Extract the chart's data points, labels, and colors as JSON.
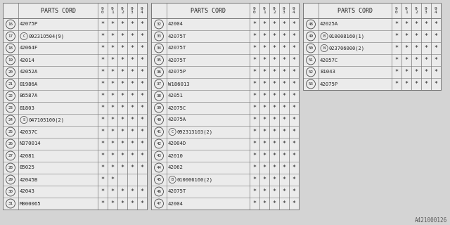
{
  "bg_color": "#d4d4d4",
  "table_bg": "#e8e8e8",
  "border_color": "#888888",
  "text_color": "#222222",
  "tables": [
    {
      "title": "PARTS CORD",
      "rows": [
        {
          "num": "16",
          "part": "42075P",
          "prefix": "",
          "marks": [
            1,
            1,
            1,
            1,
            1
          ]
        },
        {
          "num": "17",
          "part": "09231O504(9)",
          "prefix": "C",
          "marks": [
            1,
            1,
            1,
            1,
            1
          ]
        },
        {
          "num": "18",
          "part": "42064F",
          "prefix": "",
          "marks": [
            1,
            1,
            1,
            1,
            1
          ]
        },
        {
          "num": "19",
          "part": "42014",
          "prefix": "",
          "marks": [
            1,
            1,
            1,
            1,
            1
          ]
        },
        {
          "num": "20",
          "part": "42052A",
          "prefix": "",
          "marks": [
            1,
            1,
            1,
            1,
            1
          ]
        },
        {
          "num": "21",
          "part": "81986A",
          "prefix": "",
          "marks": [
            1,
            1,
            1,
            1,
            1
          ]
        },
        {
          "num": "22",
          "part": "86587A",
          "prefix": "",
          "marks": [
            1,
            1,
            1,
            1,
            1
          ]
        },
        {
          "num": "23",
          "part": "81803",
          "prefix": "",
          "marks": [
            1,
            1,
            1,
            1,
            1
          ]
        },
        {
          "num": "24",
          "part": "047105100(2)",
          "prefix": "S",
          "marks": [
            1,
            1,
            1,
            1,
            1
          ]
        },
        {
          "num": "25",
          "part": "42037C",
          "prefix": "",
          "marks": [
            1,
            1,
            1,
            1,
            1
          ]
        },
        {
          "num": "26",
          "part": "N370014",
          "prefix": "",
          "marks": [
            1,
            1,
            1,
            1,
            1
          ]
        },
        {
          "num": "27",
          "part": "42081",
          "prefix": "",
          "marks": [
            1,
            1,
            1,
            1,
            1
          ]
        },
        {
          "num": "28",
          "part": "85025",
          "prefix": "",
          "marks": [
            1,
            1,
            1,
            1,
            1
          ]
        },
        {
          "num": "29",
          "part": "42045B",
          "prefix": "",
          "marks": [
            1,
            1,
            0,
            0,
            0
          ]
        },
        {
          "num": "30",
          "part": "42043",
          "prefix": "",
          "marks": [
            1,
            1,
            1,
            1,
            1
          ]
        },
        {
          "num": "31",
          "part": "M000065",
          "prefix": "",
          "marks": [
            1,
            1,
            1,
            1,
            1
          ]
        }
      ]
    },
    {
      "title": "PARTS CORD",
      "rows": [
        {
          "num": "32",
          "part": "42004",
          "prefix": "",
          "marks": [
            1,
            1,
            1,
            1,
            1
          ]
        },
        {
          "num": "33",
          "part": "42075T",
          "prefix": "",
          "marks": [
            1,
            1,
            1,
            1,
            1
          ]
        },
        {
          "num": "34",
          "part": "42075T",
          "prefix": "",
          "marks": [
            1,
            1,
            1,
            1,
            1
          ]
        },
        {
          "num": "35",
          "part": "42075T",
          "prefix": "",
          "marks": [
            1,
            1,
            1,
            1,
            1
          ]
        },
        {
          "num": "36",
          "part": "42075P",
          "prefix": "",
          "marks": [
            1,
            1,
            1,
            1,
            1
          ]
        },
        {
          "num": "37",
          "part": "W186013",
          "prefix": "",
          "marks": [
            1,
            1,
            1,
            1,
            1
          ]
        },
        {
          "num": "38",
          "part": "42051",
          "prefix": "",
          "marks": [
            1,
            1,
            1,
            1,
            1
          ]
        },
        {
          "num": "39",
          "part": "42075C",
          "prefix": "",
          "marks": [
            1,
            1,
            1,
            1,
            1
          ]
        },
        {
          "num": "40",
          "part": "42075A",
          "prefix": "",
          "marks": [
            1,
            1,
            1,
            1,
            1
          ]
        },
        {
          "num": "41",
          "part": "092313103(2)",
          "prefix": "C",
          "marks": [
            1,
            1,
            1,
            1,
            1
          ]
        },
        {
          "num": "42",
          "part": "42004D",
          "prefix": "",
          "marks": [
            1,
            1,
            1,
            1,
            1
          ]
        },
        {
          "num": "43",
          "part": "42010",
          "prefix": "",
          "marks": [
            1,
            1,
            1,
            1,
            1
          ]
        },
        {
          "num": "44",
          "part": "42062",
          "prefix": "",
          "marks": [
            1,
            1,
            1,
            1,
            1
          ]
        },
        {
          "num": "45",
          "part": "010006160(2)",
          "prefix": "B",
          "marks": [
            1,
            1,
            1,
            1,
            1
          ]
        },
        {
          "num": "46",
          "part": "42075T",
          "prefix": "",
          "marks": [
            1,
            1,
            1,
            1,
            1
          ]
        },
        {
          "num": "47",
          "part": "42004",
          "prefix": "",
          "marks": [
            1,
            1,
            1,
            1,
            1
          ]
        }
      ]
    },
    {
      "title": "PARTS CORD",
      "rows": [
        {
          "num": "48",
          "part": "42025A",
          "prefix": "",
          "marks": [
            1,
            1,
            1,
            1,
            1
          ]
        },
        {
          "num": "49",
          "part": "010008160(1)",
          "prefix": "B",
          "marks": [
            1,
            1,
            1,
            1,
            1
          ]
        },
        {
          "num": "50",
          "part": "023706000(2)",
          "prefix": "N",
          "marks": [
            1,
            1,
            1,
            1,
            1
          ]
        },
        {
          "num": "51",
          "part": "42057C",
          "prefix": "",
          "marks": [
            1,
            1,
            1,
            1,
            1
          ]
        },
        {
          "num": "52",
          "part": "81043",
          "prefix": "",
          "marks": [
            1,
            1,
            1,
            1,
            1
          ]
        },
        {
          "num": "53",
          "part": "42075P",
          "prefix": "",
          "marks": [
            1,
            1,
            1,
            1,
            1
          ]
        }
      ]
    }
  ],
  "footnote": "A421000126"
}
